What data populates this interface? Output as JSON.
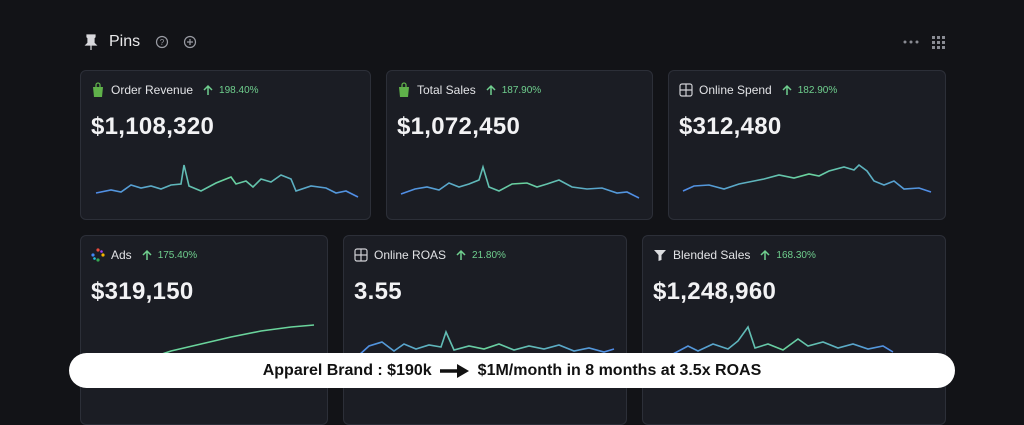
{
  "header": {
    "title": "Pins"
  },
  "cards": [
    {
      "title": "Order Revenue",
      "change": "198.40%",
      "value": "$1,108,320"
    },
    {
      "title": "Total Sales",
      "change": "187.90%",
      "value": "$1,072,450"
    },
    {
      "title": "Online Spend",
      "change": "182.90%",
      "value": "$312,480"
    },
    {
      "title": "Ads",
      "change": "175.40%",
      "value": "$319,150"
    },
    {
      "title": "Online ROAS",
      "change": "21.80%",
      "value": "3.55"
    },
    {
      "title": "Blended Sales",
      "change": "168.30%",
      "value": "$1,248,960"
    }
  ],
  "caption": {
    "before": "Apparel Brand : $190k",
    "after": "$1M/month in 8 months at 3.5x ROAS"
  }
}
